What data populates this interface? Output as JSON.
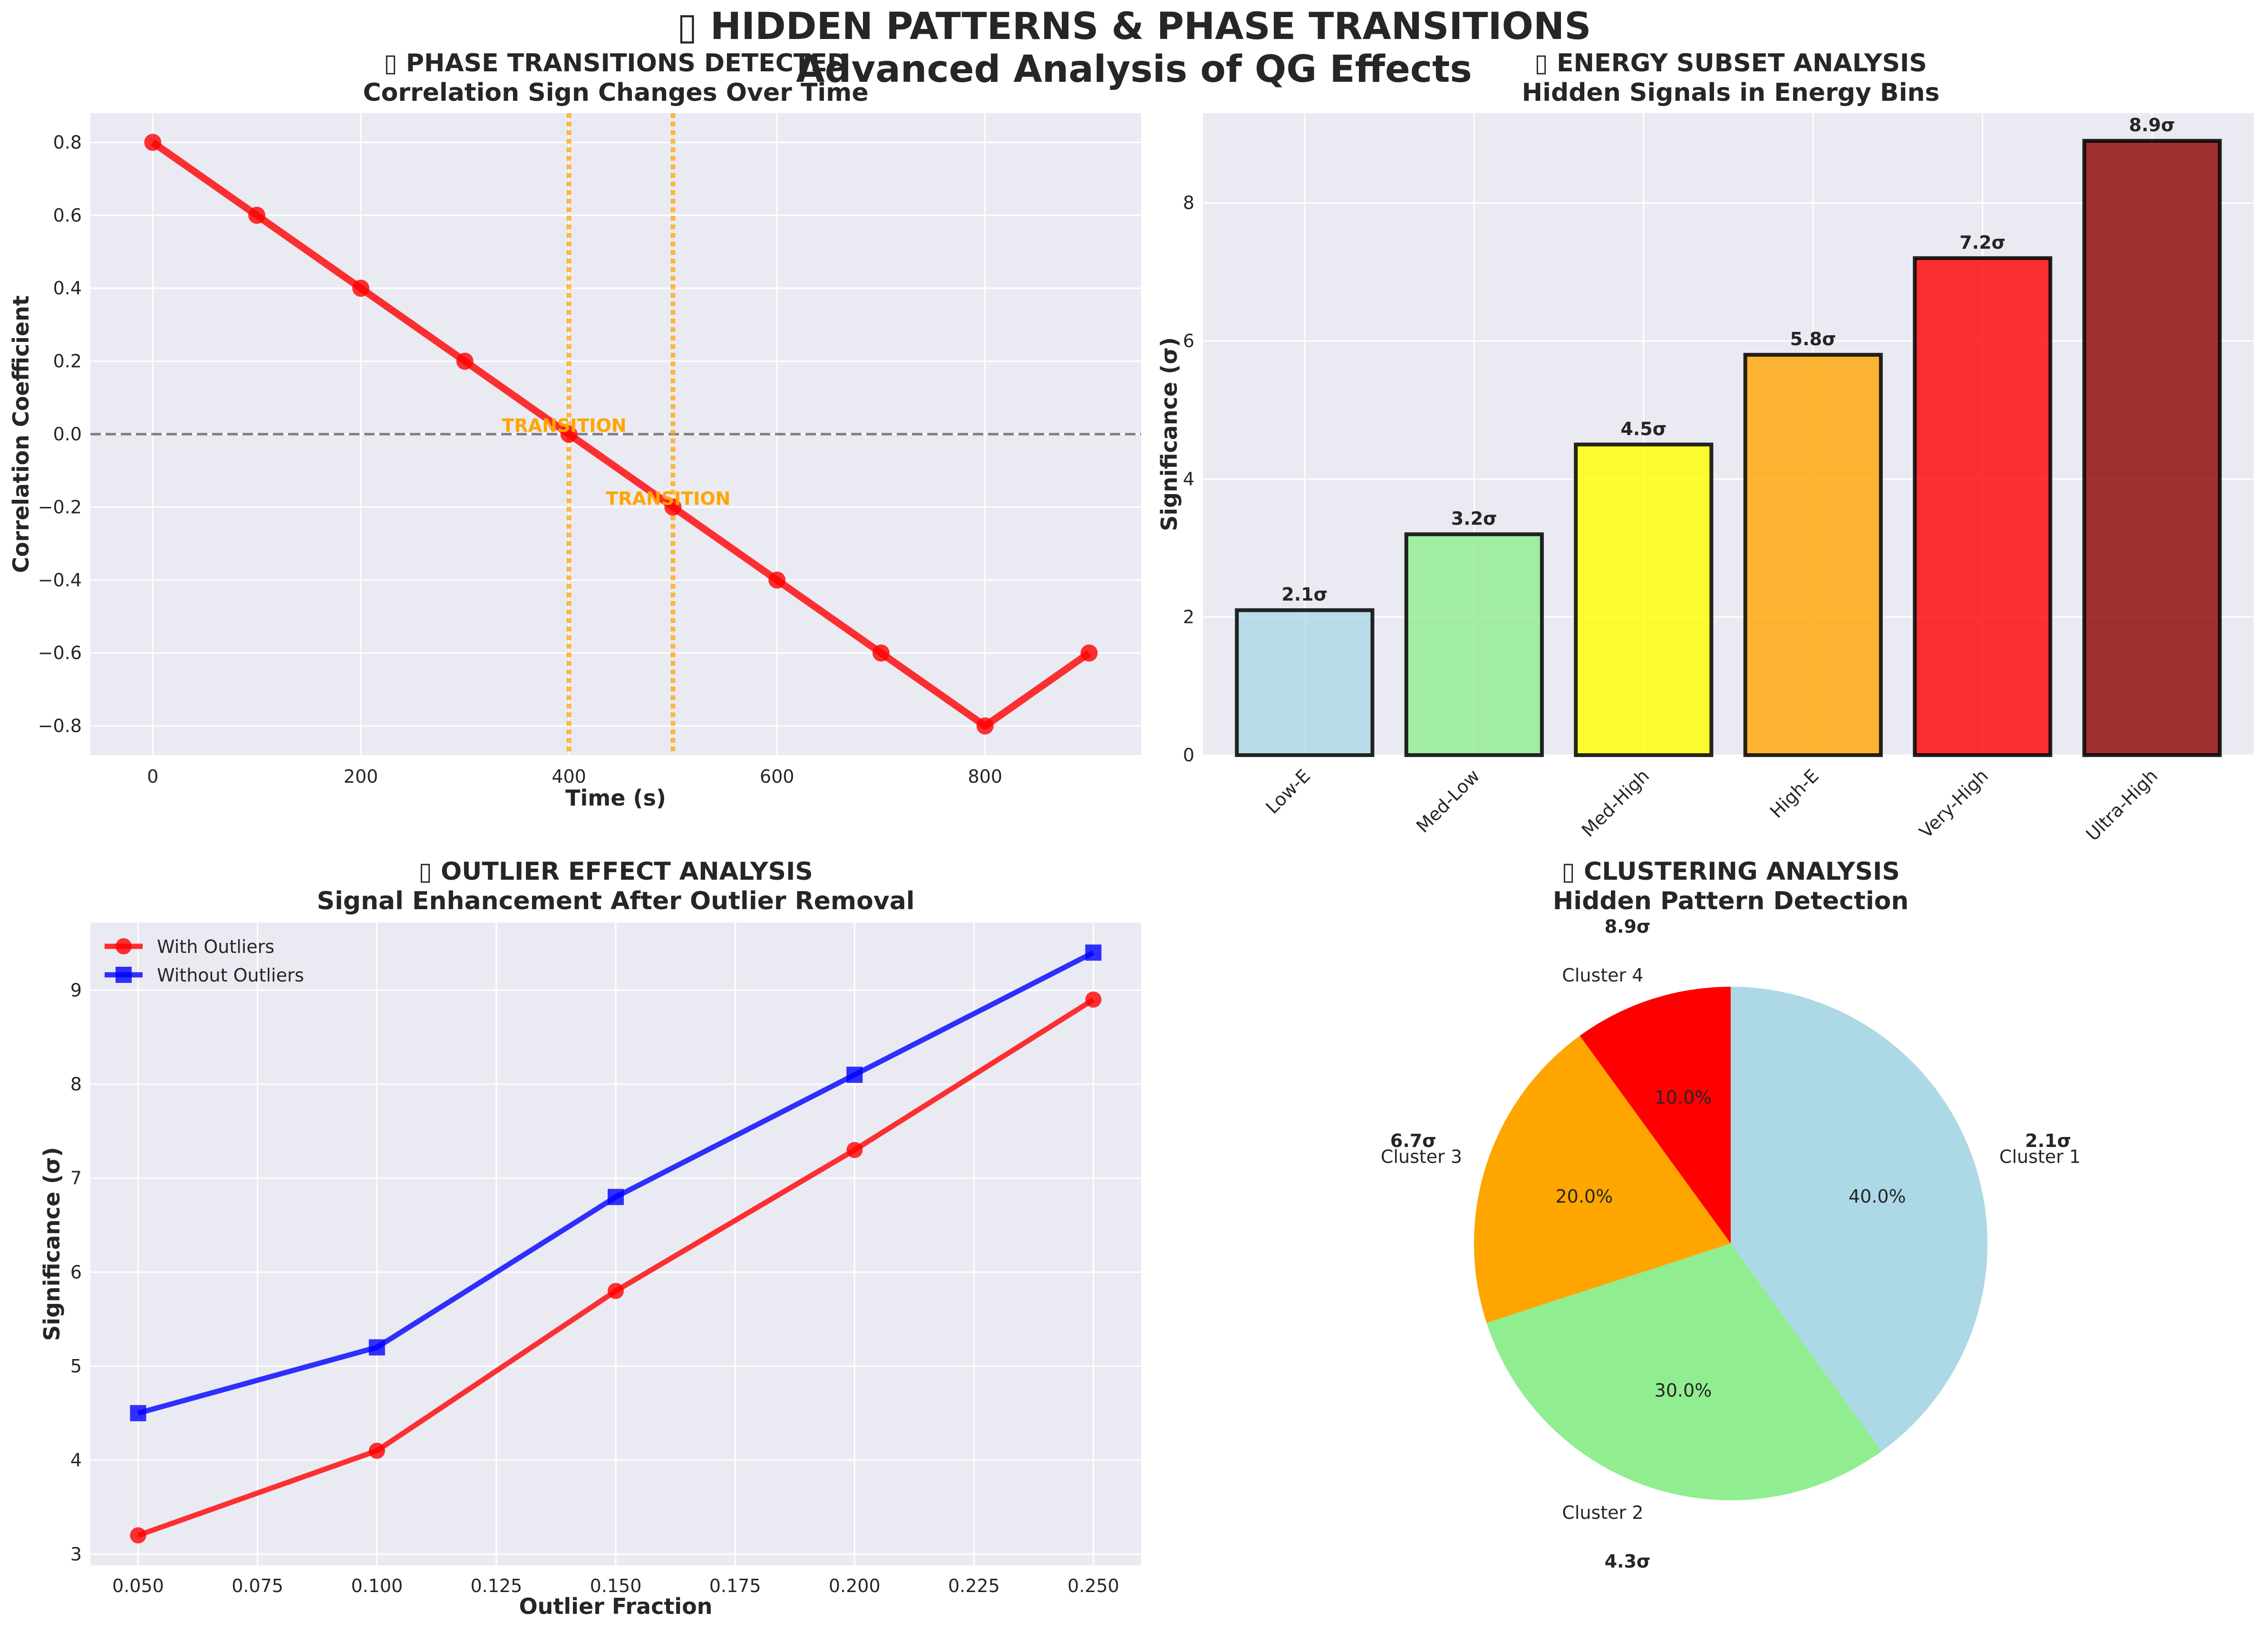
{
  "figure": {
    "title_line1": "▯ HIDDEN PATTERNS & PHASE TRANSITIONS",
    "title_line2": "Advanced Analysis of QG Effects"
  },
  "colors": {
    "panel_bg": "#eaeaf2",
    "grid": "#ffffff",
    "text": "#262626",
    "red": "#ff0000",
    "blue": "#0000ff",
    "orange": "#ffa500"
  },
  "chart_data": [
    {
      "id": "phase",
      "type": "line",
      "title": "▯ PHASE TRANSITIONS DETECTED",
      "subtitle": "Correlation Sign Changes Over Time",
      "xlabel": "Time (s)",
      "ylabel": "Correlation Coefficient",
      "x": [
        0,
        100,
        200,
        300,
        400,
        500,
        600,
        700,
        800,
        900
      ],
      "values": [
        0.8,
        0.6,
        0.4,
        0.2,
        0.0,
        -0.2,
        -0.4,
        -0.6,
        -0.8,
        -0.6
      ],
      "xlim": [
        -60,
        950
      ],
      "ylim": [
        -0.88,
        0.88
      ],
      "xticks": [
        0,
        200,
        400,
        600,
        800
      ],
      "yticks": [
        -0.8,
        -0.6,
        -0.4,
        -0.2,
        0.0,
        0.2,
        0.4,
        0.6,
        0.8
      ],
      "ytick_labels": [
        "−0.8",
        "−0.6",
        "−0.4",
        "−0.2",
        "0.0",
        "0.2",
        "0.4",
        "0.6",
        "0.8"
      ],
      "zero_line": 0,
      "transitions": [
        {
          "x": 400,
          "y": 0.0,
          "label": "TRANSITION"
        },
        {
          "x": 500,
          "y": -0.2,
          "label": "TRANSITION"
        }
      ],
      "line_color": "#ff0000"
    },
    {
      "id": "energy",
      "type": "bar",
      "title": "▯ ENERGY SUBSET ANALYSIS",
      "subtitle": "Hidden Signals in Energy Bins",
      "xlabel": "",
      "ylabel": "Significance (σ)",
      "categories": [
        "Low-E",
        "Med-Low",
        "Med-High",
        "High-E",
        "Very-High",
        "Ultra-High"
      ],
      "values": [
        2.1,
        3.2,
        4.5,
        5.8,
        7.2,
        8.9
      ],
      "value_labels": [
        "2.1σ",
        "3.2σ",
        "4.5σ",
        "5.8σ",
        "7.2σ",
        "8.9σ"
      ],
      "colors": [
        "#add8e6",
        "#90ee90",
        "#ffff00",
        "#ffa500",
        "#ff0000",
        "#8b0000"
      ],
      "ylim": [
        0,
        9.3
      ],
      "yticks": [
        0,
        2,
        4,
        6,
        8
      ],
      "ytick_labels": [
        "0",
        "2",
        "4",
        "6",
        "8"
      ]
    },
    {
      "id": "outlier",
      "type": "line",
      "title": "▯ OUTLIER EFFECT ANALYSIS",
      "subtitle": "Signal Enhancement After Outlier Removal",
      "xlabel": "Outlier Fraction",
      "ylabel": "Significance (σ)",
      "x": [
        0.05,
        0.1,
        0.15,
        0.2,
        0.25
      ],
      "series": [
        {
          "name": "With Outliers",
          "values": [
            3.2,
            4.1,
            5.8,
            7.3,
            8.9
          ],
          "color": "#ff0000",
          "marker": "circle"
        },
        {
          "name": "Without Outliers",
          "values": [
            4.5,
            5.2,
            6.8,
            8.1,
            9.4
          ],
          "color": "#0000ff",
          "marker": "square"
        }
      ],
      "xlim": [
        0.04,
        0.26
      ],
      "ylim": [
        2.88,
        9.72
      ],
      "xticks": [
        0.05,
        0.075,
        0.1,
        0.125,
        0.15,
        0.175,
        0.2,
        0.225,
        0.25
      ],
      "xtick_labels": [
        "0.050",
        "0.075",
        "0.100",
        "0.125",
        "0.150",
        "0.175",
        "0.200",
        "0.225",
        "0.250"
      ],
      "yticks": [
        3,
        4,
        5,
        6,
        7,
        8,
        9
      ],
      "ytick_labels": [
        "3",
        "4",
        "5",
        "6",
        "7",
        "8",
        "9"
      ],
      "legend": "top-left"
    },
    {
      "id": "cluster",
      "type": "pie",
      "title": "▯ CLUSTERING ANALYSIS",
      "subtitle": "Hidden Pattern Detection",
      "labels": [
        "Cluster 1",
        "Cluster 2",
        "Cluster 3",
        "Cluster 4"
      ],
      "values": [
        40,
        30,
        20,
        10
      ],
      "pct_labels": [
        "40.0%",
        "30.0%",
        "20.0%",
        "10.0%"
      ],
      "sigma_labels": [
        "2.1σ",
        "4.3σ",
        "6.7σ",
        "8.9σ"
      ],
      "colors": [
        "#add8e6",
        "#90ee90",
        "#ffa500",
        "#ff0000"
      ],
      "start_angle_deg": 90,
      "direction": "clockwise"
    }
  ]
}
